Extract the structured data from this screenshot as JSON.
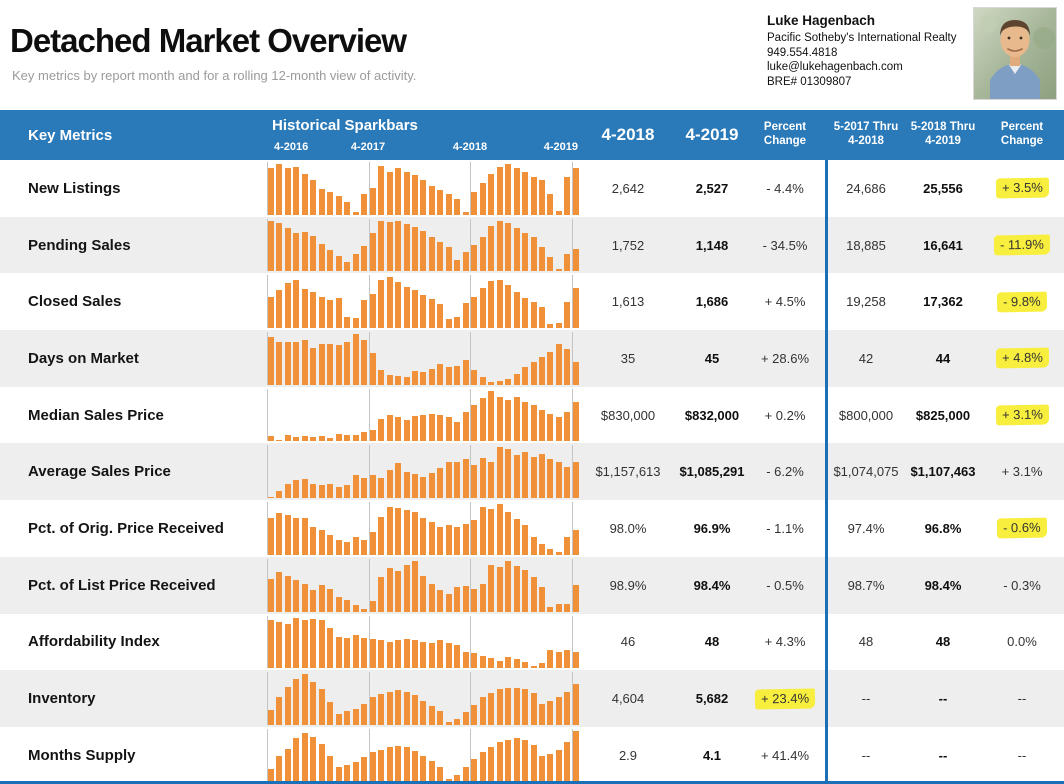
{
  "page": {
    "title": "Detached Market Overview",
    "subtitle": "Key metrics by report month and for a rolling 12-month view of activity."
  },
  "agent": {
    "name": "Luke Hagenbach",
    "company": "Pacific Sotheby's International Realty",
    "phone": "949.554.4818",
    "email": "luke@lukehagenbach.com",
    "license": "BRE# 01309807"
  },
  "header": {
    "key_metrics": "Key Metrics",
    "sparkbars_title": "Historical Sparkbars",
    "spark_years": [
      "4-2016",
      "4-2017",
      "4-2018",
      "4-2019"
    ],
    "col_month_prev": "4-2018",
    "col_month_curr": "4-2019",
    "col_pct_line1": "Percent",
    "col_pct_line2": "Change",
    "col_roll_prev_line1": "5-2017 Thru",
    "col_roll_prev_line2": "4-2018",
    "col_roll_curr_line1": "5-2018 Thru",
    "col_roll_curr_line2": "4-2019",
    "col_roll_pct_line1": "Percent",
    "col_roll_pct_line2": "Change"
  },
  "rows": [
    {
      "label": "New Listings",
      "m_prev": "2,642",
      "m_curr": "2,527",
      "m_pct": "- 4.4%",
      "m_pct_hl": false,
      "r_prev": "24,686",
      "r_curr": "25,556",
      "r_pct": "+ 3.5%",
      "r_pct_hl": true
    },
    {
      "label": "Pending Sales",
      "m_prev": "1,752",
      "m_curr": "1,148",
      "m_pct": "- 34.5%",
      "m_pct_hl": false,
      "r_prev": "18,885",
      "r_curr": "16,641",
      "r_pct": "- 11.9%",
      "r_pct_hl": true
    },
    {
      "label": "Closed Sales",
      "m_prev": "1,613",
      "m_curr": "1,686",
      "m_pct": "+ 4.5%",
      "m_pct_hl": false,
      "r_prev": "19,258",
      "r_curr": "17,362",
      "r_pct": "- 9.8%",
      "r_pct_hl": true
    },
    {
      "label": "Days on Market",
      "m_prev": "35",
      "m_curr": "45",
      "m_pct": "+ 28.6%",
      "m_pct_hl": false,
      "r_prev": "42",
      "r_curr": "44",
      "r_pct": "+ 4.8%",
      "r_pct_hl": true
    },
    {
      "label": "Median Sales Price",
      "m_prev": "$830,000",
      "m_curr": "$832,000",
      "m_pct": "+ 0.2%",
      "m_pct_hl": false,
      "r_prev": "$800,000",
      "r_curr": "$825,000",
      "r_pct": "+ 3.1%",
      "r_pct_hl": true
    },
    {
      "label": "Average Sales Price",
      "m_prev": "$1,157,613",
      "m_curr": "$1,085,291",
      "m_pct": "- 6.2%",
      "m_pct_hl": false,
      "r_prev": "$1,074,075",
      "r_curr": "$1,107,463",
      "r_pct": "+ 3.1%",
      "r_pct_hl": false
    },
    {
      "label": "Pct. of Orig. Price Received",
      "m_prev": "98.0%",
      "m_curr": "96.9%",
      "m_pct": "- 1.1%",
      "m_pct_hl": false,
      "r_prev": "97.4%",
      "r_curr": "96.8%",
      "r_pct": "- 0.6%",
      "r_pct_hl": true
    },
    {
      "label": "Pct. of List Price Received",
      "m_prev": "98.9%",
      "m_curr": "98.4%",
      "m_pct": "- 0.5%",
      "m_pct_hl": false,
      "r_prev": "98.7%",
      "r_curr": "98.4%",
      "r_pct": "- 0.3%",
      "r_pct_hl": false
    },
    {
      "label": "Affordability Index",
      "m_prev": "46",
      "m_curr": "48",
      "m_pct": "+ 4.3%",
      "m_pct_hl": false,
      "r_prev": "48",
      "r_curr": "48",
      "r_pct": "0.0%",
      "r_pct_hl": false
    },
    {
      "label": "Inventory",
      "m_prev": "4,604",
      "m_curr": "5,682",
      "m_pct": "+ 23.4%",
      "m_pct_hl": true,
      "r_prev": "--",
      "r_curr": "--",
      "r_pct": "--",
      "r_pct_hl": false
    },
    {
      "label": "Months Supply",
      "m_prev": "2.9",
      "m_curr": "4.1",
      "m_pct": "+ 41.4%",
      "m_pct_hl": false,
      "r_prev": "--",
      "r_curr": "--",
      "r_pct": "--",
      "r_pct_hl": false
    }
  ],
  "chart_data": {
    "type": "bar",
    "title": "Historical Sparkbars",
    "x_ticks": [
      "4-2016",
      "4-2017",
      "4-2018",
      "4-2019"
    ],
    "note": "37 monthly bars per metric from 4-2016 through 4-2019; values are relative bar heights (0-1) as rendered, no value axis shown; vertical gridlines at each April",
    "series": [
      {
        "name": "New Listings",
        "values": [
          0.93,
          1.0,
          0.93,
          0.95,
          0.8,
          0.68,
          0.5,
          0.45,
          0.37,
          0.25,
          0.06,
          0.4,
          0.52,
          0.97,
          0.85,
          0.92,
          0.85,
          0.78,
          0.68,
          0.57,
          0.48,
          0.4,
          0.3,
          0.05,
          0.45,
          0.62,
          0.8,
          0.95,
          1.0,
          0.93,
          0.85,
          0.75,
          0.68,
          0.4,
          0.07,
          0.75,
          0.92
        ]
      },
      {
        "name": "Pending Sales",
        "values": [
          1.0,
          0.95,
          0.85,
          0.75,
          0.78,
          0.7,
          0.55,
          0.42,
          0.3,
          0.18,
          0.35,
          0.5,
          0.75,
          1.0,
          0.97,
          1.0,
          0.93,
          0.88,
          0.8,
          0.68,
          0.58,
          0.48,
          0.22,
          0.38,
          0.52,
          0.68,
          0.9,
          1.0,
          0.95,
          0.85,
          0.75,
          0.68,
          0.48,
          0.28,
          0.05,
          0.35,
          0.45
        ]
      },
      {
        "name": "Closed Sales",
        "values": [
          0.62,
          0.75,
          0.88,
          0.95,
          0.78,
          0.72,
          0.62,
          0.55,
          0.6,
          0.22,
          0.2,
          0.55,
          0.68,
          0.95,
          1.0,
          0.9,
          0.82,
          0.75,
          0.65,
          0.58,
          0.48,
          0.18,
          0.22,
          0.5,
          0.62,
          0.8,
          0.92,
          0.95,
          0.85,
          0.72,
          0.6,
          0.52,
          0.42,
          0.08,
          0.1,
          0.52,
          0.8
        ]
      },
      {
        "name": "Days on Market",
        "values": [
          0.95,
          0.85,
          0.85,
          0.85,
          0.88,
          0.72,
          0.8,
          0.8,
          0.78,
          0.85,
          1.0,
          0.88,
          0.62,
          0.3,
          0.2,
          0.18,
          0.15,
          0.28,
          0.25,
          0.32,
          0.4,
          0.35,
          0.38,
          0.48,
          0.3,
          0.15,
          0.05,
          0.08,
          0.12,
          0.22,
          0.35,
          0.45,
          0.55,
          0.65,
          0.8,
          0.7,
          0.45
        ]
      },
      {
        "name": "Median Sales Price",
        "values": [
          0.1,
          0.02,
          0.12,
          0.08,
          0.1,
          0.08,
          0.1,
          0.06,
          0.15,
          0.12,
          0.12,
          0.18,
          0.22,
          0.45,
          0.52,
          0.48,
          0.42,
          0.5,
          0.52,
          0.55,
          0.52,
          0.48,
          0.38,
          0.58,
          0.72,
          0.85,
          1.0,
          0.88,
          0.82,
          0.88,
          0.78,
          0.72,
          0.62,
          0.55,
          0.48,
          0.58,
          0.78
        ]
      },
      {
        "name": "Average Sales Price",
        "values": [
          0.03,
          0.15,
          0.28,
          0.35,
          0.38,
          0.28,
          0.25,
          0.28,
          0.22,
          0.25,
          0.45,
          0.4,
          0.45,
          0.4,
          0.55,
          0.7,
          0.52,
          0.48,
          0.42,
          0.5,
          0.6,
          0.72,
          0.72,
          0.78,
          0.65,
          0.8,
          0.72,
          1.0,
          0.97,
          0.85,
          0.92,
          0.82,
          0.88,
          0.78,
          0.72,
          0.62,
          0.72
        ]
      },
      {
        "name": "Pct. of Orig. Price Received",
        "values": [
          0.72,
          0.82,
          0.78,
          0.72,
          0.72,
          0.55,
          0.48,
          0.4,
          0.3,
          0.25,
          0.35,
          0.3,
          0.45,
          0.75,
          0.95,
          0.92,
          0.88,
          0.85,
          0.72,
          0.65,
          0.55,
          0.58,
          0.55,
          0.6,
          0.68,
          0.95,
          0.9,
          1.0,
          0.85,
          0.7,
          0.58,
          0.35,
          0.22,
          0.12,
          0.05,
          0.35,
          0.48
        ]
      },
      {
        "name": "Pct. of List Price Received",
        "values": [
          0.65,
          0.78,
          0.7,
          0.62,
          0.55,
          0.42,
          0.52,
          0.45,
          0.28,
          0.22,
          0.12,
          0.05,
          0.2,
          0.68,
          0.85,
          0.8,
          0.92,
          1.0,
          0.7,
          0.55,
          0.42,
          0.35,
          0.48,
          0.5,
          0.45,
          0.55,
          0.92,
          0.88,
          1.0,
          0.9,
          0.82,
          0.68,
          0.48,
          0.08,
          0.15,
          0.15,
          0.52
        ]
      },
      {
        "name": "Affordability Index",
        "values": [
          0.95,
          0.92,
          0.88,
          1.0,
          0.95,
          0.97,
          0.95,
          0.8,
          0.62,
          0.6,
          0.65,
          0.6,
          0.58,
          0.55,
          0.52,
          0.55,
          0.58,
          0.55,
          0.52,
          0.5,
          0.55,
          0.5,
          0.45,
          0.32,
          0.3,
          0.25,
          0.2,
          0.15,
          0.22,
          0.18,
          0.12,
          0.05,
          0.1,
          0.35,
          0.32,
          0.35,
          0.32
        ]
      },
      {
        "name": "Inventory",
        "values": [
          0.3,
          0.55,
          0.75,
          0.9,
          1.0,
          0.85,
          0.7,
          0.45,
          0.22,
          0.28,
          0.32,
          0.42,
          0.55,
          0.6,
          0.65,
          0.68,
          0.65,
          0.58,
          0.48,
          0.38,
          0.28,
          0.05,
          0.12,
          0.25,
          0.4,
          0.55,
          0.62,
          0.7,
          0.72,
          0.72,
          0.7,
          0.62,
          0.42,
          0.48,
          0.55,
          0.65,
          0.8
        ]
      },
      {
        "name": "Months Supply",
        "values": [
          0.25,
          0.5,
          0.65,
          0.85,
          0.95,
          0.88,
          0.75,
          0.5,
          0.28,
          0.32,
          0.38,
          0.48,
          0.58,
          0.62,
          0.68,
          0.7,
          0.68,
          0.6,
          0.5,
          0.4,
          0.28,
          0.05,
          0.12,
          0.28,
          0.45,
          0.58,
          0.68,
          0.78,
          0.82,
          0.85,
          0.82,
          0.72,
          0.5,
          0.55,
          0.62,
          0.78,
          1.0
        ]
      }
    ]
  },
  "colors": {
    "header_blue": "#2a79b8",
    "separator_blue": "#1b6fb6",
    "bar_orange": "#f0913a",
    "row_alt": "#eeeeee",
    "highlight_yellow": "#f8ee3e"
  }
}
